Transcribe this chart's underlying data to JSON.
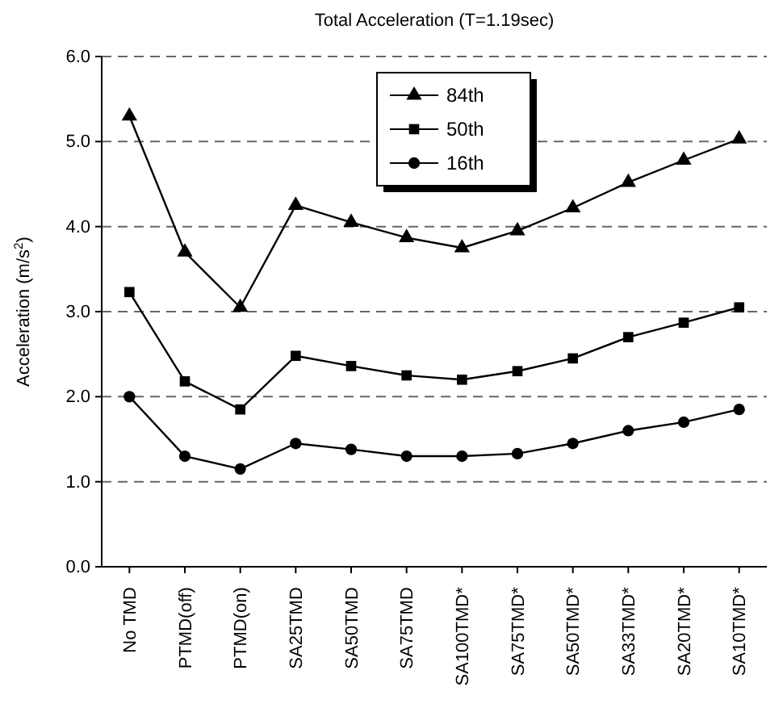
{
  "chart_data": {
    "type": "line",
    "title": "Total Acceleration (T=1.19sec)",
    "ylabel": "Acceleration (m/s$^{2}$)",
    "categories": [
      "No TMD",
      "PTMD(off)",
      "PTMD(on)",
      "SA25TMD",
      "SA50TMD",
      "SA75TMD",
      "SA100TMD*",
      "SA75TMD*",
      "SA50TMD*",
      "SA33TMD*",
      "SA20TMD*",
      "SA10TMD*"
    ],
    "series": [
      {
        "name": "84th",
        "color": "#000000",
        "marker": "triangle",
        "values": [
          5.3,
          3.7,
          3.05,
          4.25,
          4.05,
          3.87,
          3.75,
          3.95,
          4.22,
          4.52,
          4.78,
          5.03
        ]
      },
      {
        "name": "50th",
        "color": "#000000",
        "marker": "square",
        "values": [
          3.23,
          2.18,
          1.85,
          2.48,
          2.36,
          2.25,
          2.2,
          2.3,
          2.45,
          2.7,
          2.87,
          3.05
        ]
      },
      {
        "name": "16th",
        "color": "#000000",
        "marker": "circle",
        "values": [
          2.0,
          1.3,
          1.15,
          1.45,
          1.38,
          1.3,
          1.3,
          1.33,
          1.45,
          1.6,
          1.7,
          1.85
        ]
      }
    ],
    "ylim": [
      0,
      6
    ],
    "yticks": [
      {
        "value": 0,
        "label": "0.0"
      },
      {
        "value": 1,
        "label": "1.0"
      },
      {
        "value": 2,
        "label": "2.0"
      },
      {
        "value": 3,
        "label": "3.0"
      },
      {
        "value": 4,
        "label": "4.0"
      },
      {
        "value": 5,
        "label": "5.0"
      },
      {
        "value": 6,
        "label": "6.0"
      }
    ],
    "grid": "y",
    "legend": "top",
    "line_style": "solid"
  }
}
